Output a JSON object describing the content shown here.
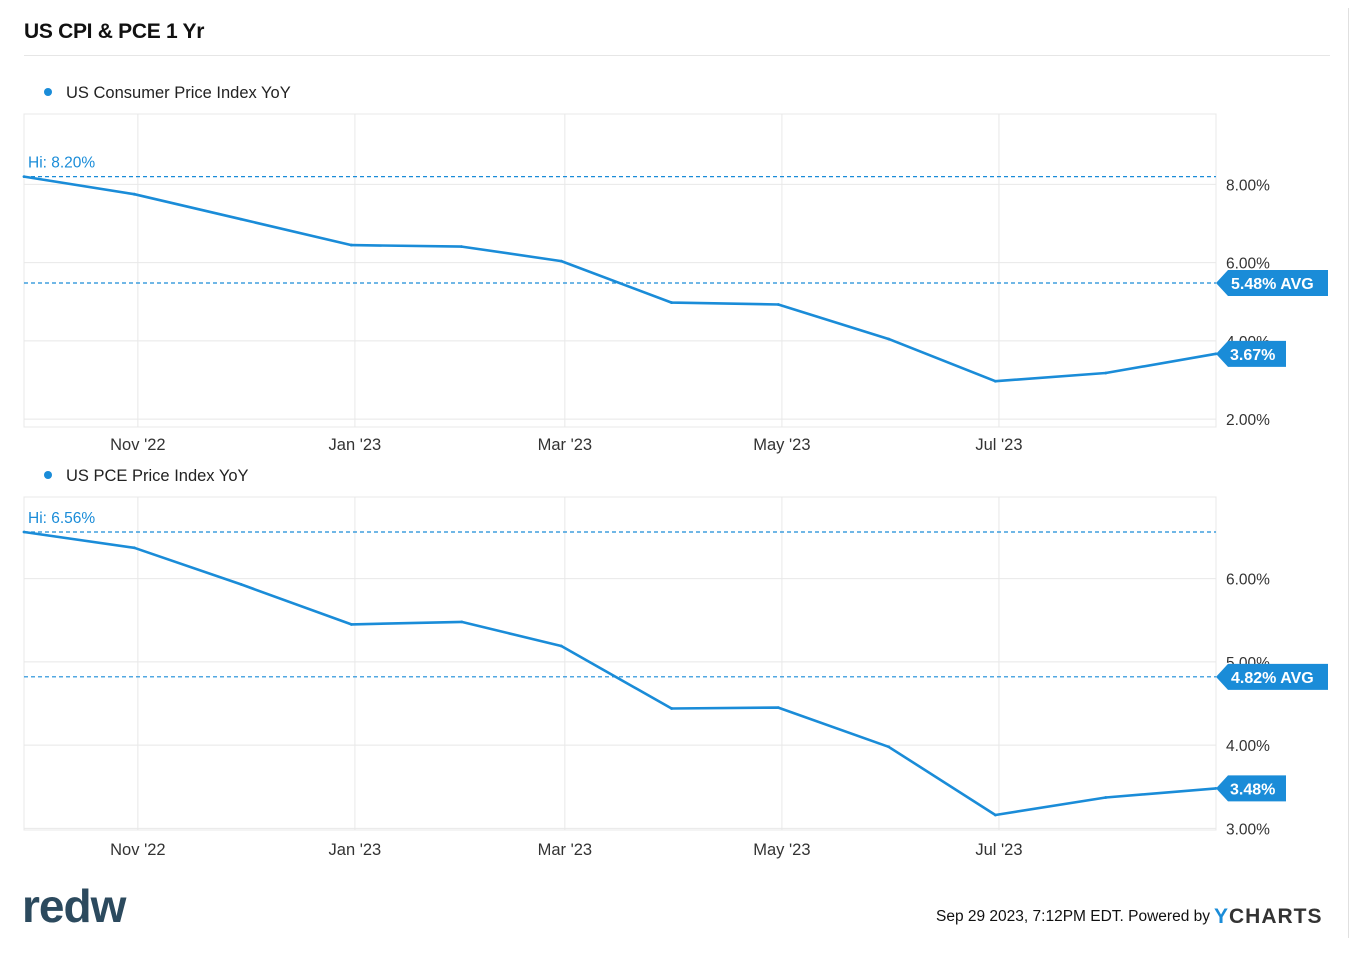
{
  "title": "US CPI & PCE 1 Yr",
  "colors": {
    "series": "#1a8cd8",
    "grid": "#e8e8e8",
    "axis_text": "#333333",
    "logo": "#2c4a5e"
  },
  "logo_text": "redw",
  "footer": {
    "timestamp": "Sep 29 2023, 7:12PM EDT. Powered by",
    "brand_y": "Y",
    "brand_rest": "CHARTS"
  },
  "chart_data": [
    {
      "type": "line",
      "series": [
        {
          "name": "US Consumer Price Index YoY",
          "x": [
            "2022-09-30",
            "2022-10-31",
            "2022-11-30",
            "2022-12-31",
            "2023-01-31",
            "2023-02-28",
            "2023-03-31",
            "2023-04-30",
            "2023-05-31",
            "2023-06-30",
            "2023-07-31",
            "2023-08-31"
          ],
          "values": [
            8.2,
            7.75,
            7.11,
            6.45,
            6.41,
            6.04,
            4.98,
            4.93,
            4.05,
            2.97,
            3.18,
            3.67
          ]
        }
      ],
      "x_ticks": [
        "Nov '22",
        "Jan '23",
        "Mar '23",
        "May '23",
        "Jul '23"
      ],
      "x_tick_dates": [
        "2022-11-01",
        "2023-01-01",
        "2023-03-01",
        "2023-05-01",
        "2023-07-01"
      ],
      "x_range": [
        "2022-09-30",
        "2023-08-31"
      ],
      "y_ticks": [
        {
          "value": 8,
          "label": "8.00%"
        },
        {
          "value": 6,
          "label": "6.00%"
        },
        {
          "value": 4,
          "label": "4.00%"
        },
        {
          "value": 2,
          "label": "2.00%"
        }
      ],
      "ylim": [
        1.8,
        9.8
      ],
      "hi": {
        "value": 8.2,
        "label": "Hi: 8.20%"
      },
      "avg": {
        "value": 5.48,
        "label": "5.48% AVG"
      },
      "last": {
        "value": 3.67,
        "label": "3.67%"
      },
      "legend_placement": "top-left",
      "grid": true
    },
    {
      "type": "line",
      "series": [
        {
          "name": "US PCE Price Index YoY",
          "x": [
            "2022-09-30",
            "2022-10-31",
            "2022-11-30",
            "2022-12-31",
            "2023-01-31",
            "2023-02-28",
            "2023-03-31",
            "2023-04-30",
            "2023-05-31",
            "2023-06-30",
            "2023-07-31",
            "2023-08-31"
          ],
          "values": [
            6.56,
            6.37,
            5.93,
            5.45,
            5.48,
            5.19,
            4.44,
            4.45,
            3.98,
            3.16,
            3.37,
            3.48
          ]
        }
      ],
      "x_ticks": [
        "Nov '22",
        "Jan '23",
        "Mar '23",
        "May '23",
        "Jul '23"
      ],
      "x_tick_dates": [
        "2022-11-01",
        "2023-01-01",
        "2023-03-01",
        "2023-05-01",
        "2023-07-01"
      ],
      "x_range": [
        "2022-09-30",
        "2023-08-31"
      ],
      "y_ticks": [
        {
          "value": 6,
          "label": "6.00%"
        },
        {
          "value": 5,
          "label": "5.00%"
        },
        {
          "value": 4,
          "label": "4.00%"
        },
        {
          "value": 3,
          "label": "3.00%"
        }
      ],
      "ylim": [
        2.98,
        6.98
      ],
      "hi": {
        "value": 6.56,
        "label": "Hi: 6.56%"
      },
      "avg": {
        "value": 4.82,
        "label": "4.82% AVG"
      },
      "last": {
        "value": 3.48,
        "label": "3.48%"
      },
      "legend_placement": "top-left",
      "grid": true
    }
  ]
}
